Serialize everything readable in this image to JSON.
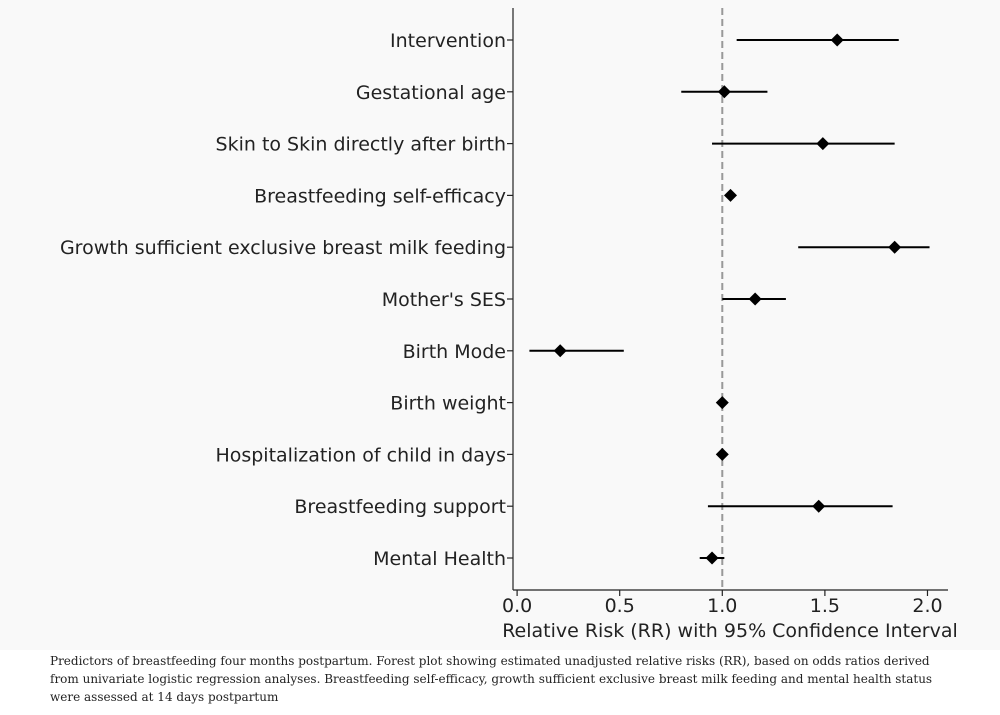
{
  "chart_data": {
    "type": "forest",
    "categories": [
      "Intervention",
      "Gestational age",
      "Skin to Skin directly after birth",
      "Breastfeeding self-efficacy",
      "Growth sufficient exclusive breast milk feeding",
      "Mother's SES",
      "Birth Mode",
      "Birth weight",
      "Hospitalization of child in days",
      "Breastfeeding support",
      "Mental Health"
    ],
    "estimates": [
      1.56,
      1.01,
      1.49,
      1.04,
      1.84,
      1.16,
      0.21,
      1.0,
      1.0,
      1.47,
      0.95
    ],
    "ci_low": [
      1.07,
      0.8,
      0.95,
      1.04,
      1.37,
      1.0,
      0.06,
      1.0,
      1.0,
      0.93,
      0.89
    ],
    "ci_high": [
      1.86,
      1.22,
      1.84,
      1.04,
      2.01,
      1.31,
      0.52,
      1.0,
      1.0,
      1.83,
      1.01
    ],
    "reference_line": 1.0,
    "xlim": [
      -0.02,
      2.1
    ],
    "xticks": [
      0.0,
      0.5,
      1.0,
      1.5,
      2.0
    ],
    "xtick_labels": [
      "0.0",
      "0.5",
      "1.0",
      "1.5",
      "2.0"
    ],
    "xlabel": "Relative Risk (RR) with 95% Confidence Interval",
    "ylabel": "",
    "colors": {
      "marker": "#000000",
      "reference": "#999999",
      "axis": "#222222"
    }
  },
  "caption": "Predictors of breastfeeding four months postpartum. Forest plot showing estimated unadjusted relative risks (RR), based on odds ratios derived from univariate logistic regression analyses. Breastfeeding self-efficacy, growth sufficient exclusive breast milk feeding and mental health status were assessed at 14 days postpartum"
}
